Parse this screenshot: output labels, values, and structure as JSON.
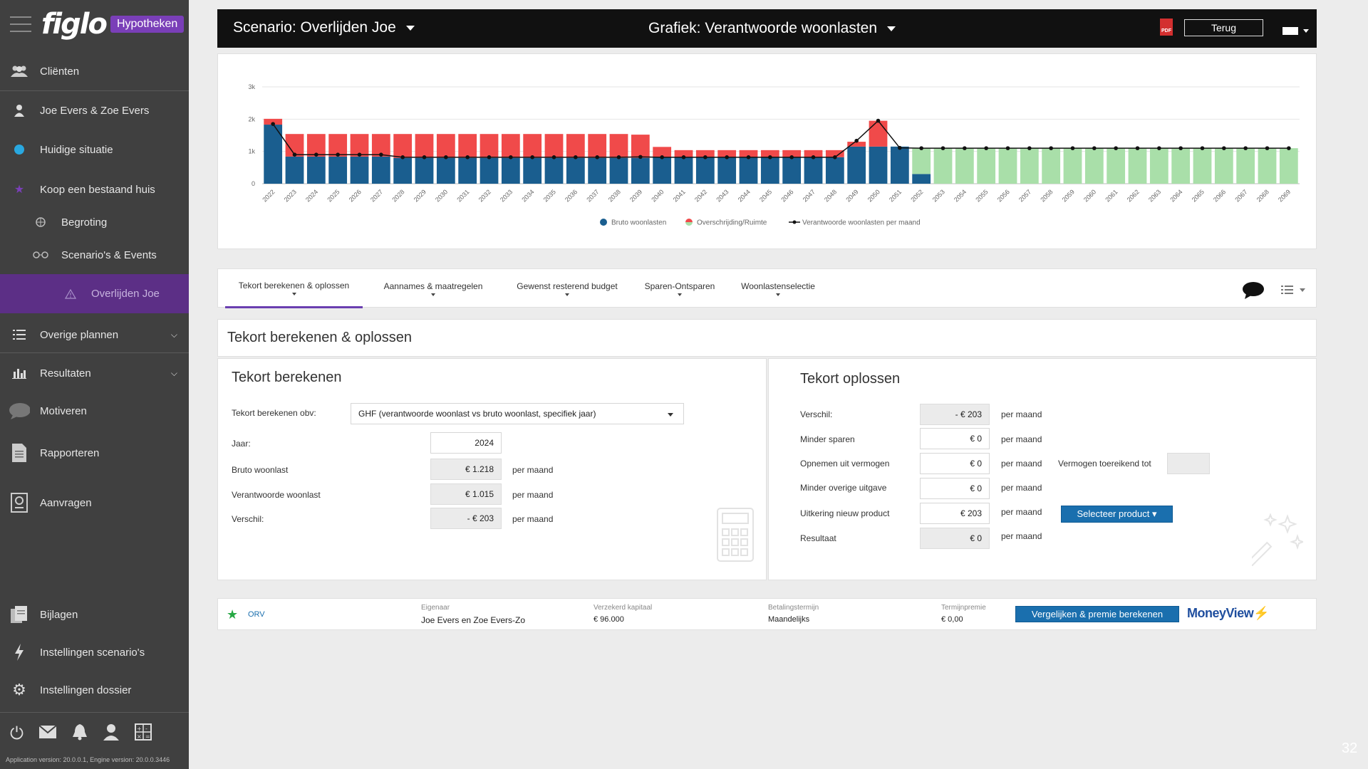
{
  "sidebar": {
    "logo": "figlo",
    "badge": "Hypotheken",
    "items": [
      {
        "label": "Cliënten"
      },
      {
        "label": "Joe Evers & Zoe Evers"
      },
      {
        "label": "Huidige situatie"
      },
      {
        "label": "Koop een bestaand huis"
      },
      {
        "label": "Begroting"
      },
      {
        "label": "Scenario's & Events"
      },
      {
        "label": "Overlijden Joe"
      },
      {
        "label": "Overige plannen"
      },
      {
        "label": "Resultaten"
      },
      {
        "label": "Motiveren"
      },
      {
        "label": "Rapporteren"
      },
      {
        "label": "Aanvragen"
      },
      {
        "label": "Bijlagen"
      },
      {
        "label": "Instellingen scenario's"
      },
      {
        "label": "Instellingen dossier"
      }
    ],
    "bottom_icons": [
      "power-icon",
      "mail-icon",
      "bell-icon",
      "user-icon",
      "calculator-icon"
    ],
    "version": "Application version: 20.0.0.1, Engine version: 20.0.0.3446"
  },
  "topbar": {
    "scenario": "Scenario: Overlijden Joe",
    "grafiek": "Grafiek: Verantwoorde woonlasten",
    "pdf": "PDF",
    "back": "Terug"
  },
  "chart_data": {
    "type": "bar",
    "categories": [
      "2022",
      "2023",
      "2024",
      "2025",
      "2026",
      "2027",
      "2028",
      "2029",
      "2030",
      "2031",
      "2032",
      "2033",
      "2034",
      "2035",
      "2036",
      "2037",
      "2038",
      "2039",
      "2040",
      "2041",
      "2042",
      "2043",
      "2044",
      "2045",
      "2046",
      "2047",
      "2048",
      "2049",
      "2050",
      "2051",
      "2052",
      "2053",
      "2054",
      "2055",
      "2056",
      "2057",
      "2058",
      "2059",
      "2060",
      "2061",
      "2062",
      "2063",
      "2064",
      "2065",
      "2066",
      "2067",
      "2068",
      "2069"
    ],
    "series": [
      {
        "name": "Bruto woonlasten",
        "color": "#1a5e8f",
        "values": [
          1830,
          840,
          840,
          840,
          840,
          840,
          800,
          800,
          800,
          800,
          800,
          800,
          800,
          800,
          800,
          800,
          800,
          800,
          820,
          820,
          820,
          820,
          820,
          820,
          820,
          820,
          820,
          1150,
          1150,
          1150,
          300,
          0,
          0,
          0,
          0,
          0,
          0,
          0,
          0,
          0,
          0,
          0,
          0,
          0,
          0,
          0,
          0,
          0
        ]
      },
      {
        "name": "Overschrijding/Ruimte",
        "color_over": "#f04a4a",
        "color_room": "#a9dfa9",
        "values": [
          180,
          700,
          700,
          700,
          700,
          700,
          740,
          740,
          740,
          740,
          740,
          740,
          740,
          740,
          740,
          740,
          740,
          720,
          320,
          220,
          220,
          220,
          220,
          220,
          220,
          220,
          220,
          150,
          800,
          -7,
          800,
          1100,
          1100,
          1100,
          1100,
          1100,
          1100,
          1100,
          1100,
          1100,
          1100,
          1100,
          1100,
          1100,
          1100,
          1100,
          1100,
          1100
        ],
        "colors_by_sign": true
      },
      {
        "name": "Verantwoorde woonlasten per maand",
        "type": "line",
        "color": "#111",
        "values": [
          1850,
          900,
          900,
          900,
          900,
          900,
          820,
          820,
          820,
          820,
          820,
          820,
          820,
          820,
          820,
          820,
          820,
          830,
          820,
          820,
          820,
          820,
          820,
          820,
          820,
          820,
          820,
          1330,
          1950,
          1110,
          1100,
          1100,
          1100,
          1100,
          1100,
          1100,
          1100,
          1100,
          1100,
          1100,
          1100,
          1100,
          1100,
          1100,
          1100,
          1100,
          1100,
          1100
        ]
      }
    ],
    "yticks": [
      "0",
      "1k",
      "2k",
      "3k"
    ],
    "ylim": [
      0,
      3000
    ],
    "legend": "bottom"
  },
  "tabs": [
    {
      "label": "Tekort berekenen & oplossen",
      "active": true
    },
    {
      "label": "Aannames & maatregelen"
    },
    {
      "label": "Gewenst resterend budget"
    },
    {
      "label": "Sparen-Ontsparen"
    },
    {
      "label": "Woonlastenselectie"
    }
  ],
  "section_title": "Tekort berekenen & oplossen",
  "left": {
    "title": "Tekort berekenen",
    "obv_label": "Tekort berekenen obv:",
    "obv_value": "GHF (verantwoorde  woonlast  vs bruto woonlast,  specifiek jaar)",
    "jaar_label": "Jaar:",
    "jaar_value": "2024",
    "bruto_label": "Bruto woonlast",
    "bruto_value": "€ 1.218",
    "verantw_label": "Verantwoorde  woonlast",
    "verantw_value": "€ 1.015",
    "verschil_label": "Verschil:",
    "verschil_value": "- € 203",
    "unit": "per maand"
  },
  "right": {
    "title": "Tekort oplossen",
    "rows": [
      {
        "label": "Verschil:",
        "value": "- € 203",
        "ro": true
      },
      {
        "label": "Minder sparen",
        "value": "€ 0",
        "ro": false
      },
      {
        "label": "Opnemen uit vermogen",
        "value": "€ 0",
        "ro": false
      },
      {
        "label": "Minder overige  uitgave",
        "value": "€ 0",
        "ro": false
      },
      {
        "label": "Uitkering  nieuw product",
        "value": "€ 203",
        "ro": false
      },
      {
        "label": "Resultaat",
        "value": "€ 0",
        "ro": true
      }
    ],
    "unit": "per maand",
    "vermogen_label": "Vermogen  toereikend  tot",
    "select_product": "Selecteer  product"
  },
  "orv": {
    "type": "ORV",
    "eigenaar_label": "Eigenaar",
    "eigenaar": "Joe Evers en Zoe Evers-Zo",
    "kapitaal_label": "Verzekerd kapitaal",
    "kapitaal": "€ 96.000",
    "termijn_label": "Betalingstermijn",
    "termijn": "Maandelijks",
    "premie_label": "Termijnpremie",
    "premie": "€ 0,00",
    "button": "Vergelijken  & premie berekenen",
    "brand": "MoneyView"
  },
  "page_number": "32"
}
